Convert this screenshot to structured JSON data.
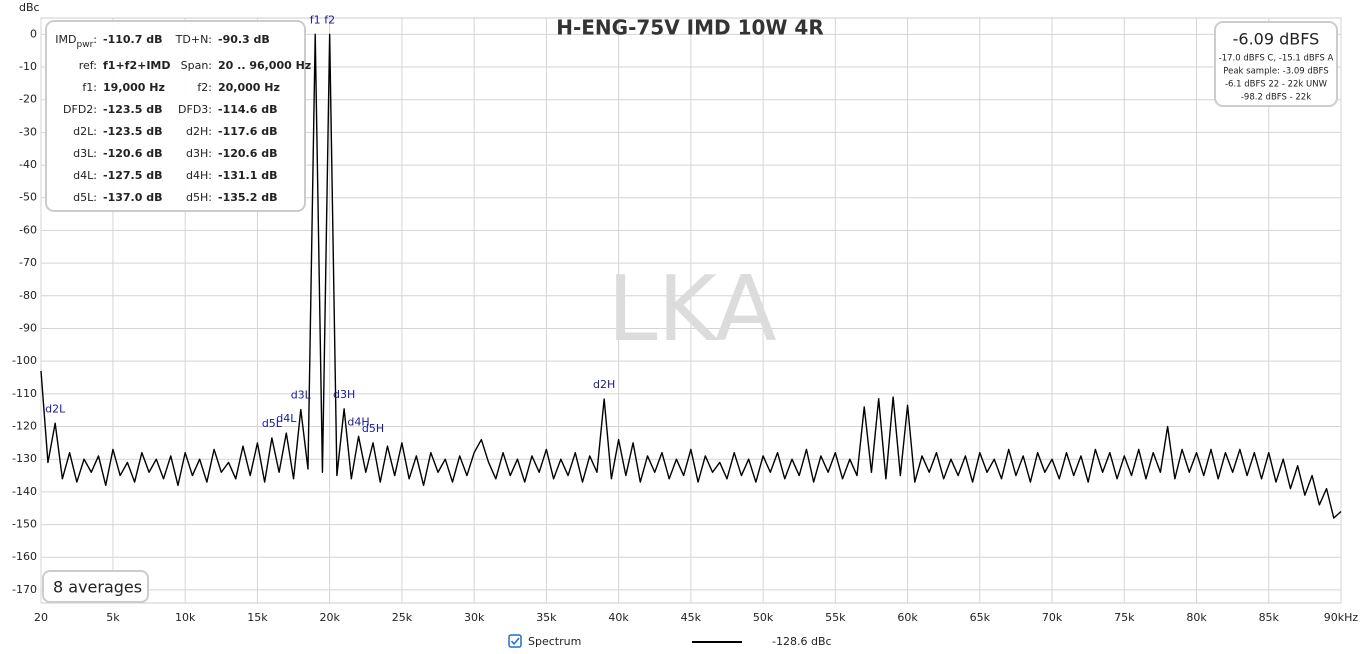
{
  "chart_data": {
    "type": "line",
    "title": "H-ENG-75V IMD 10W 4R",
    "y_label": "dBc",
    "watermark": "LKA",
    "xlim": [
      20,
      90000
    ],
    "ylim": [
      -174,
      5
    ],
    "xticks": [
      20,
      {
        "value": 5000,
        "label": "5k"
      },
      {
        "value": 10000,
        "label": "10k"
      },
      {
        "value": 15000,
        "label": "15k"
      },
      {
        "value": 20000,
        "label": "20k"
      },
      {
        "value": 25000,
        "label": "25k"
      },
      {
        "value": 30000,
        "label": "30k"
      },
      {
        "value": 35000,
        "label": "35k"
      },
      {
        "value": 40000,
        "label": "40k"
      },
      {
        "value": 45000,
        "label": "45k"
      },
      {
        "value": 50000,
        "label": "50k"
      },
      {
        "value": 55000,
        "label": "55k"
      },
      {
        "value": 60000,
        "label": "60k"
      },
      {
        "value": 65000,
        "label": "65k"
      },
      {
        "value": 70000,
        "label": "70k"
      },
      {
        "value": 75000,
        "label": "75k"
      },
      {
        "value": 80000,
        "label": "80k"
      },
      {
        "value": 85000,
        "label": "85k"
      },
      {
        "value": 90000,
        "label": "90kHz"
      }
    ],
    "yticks": [
      0,
      -10,
      -20,
      -30,
      -40,
      -50,
      -60,
      -70,
      -80,
      -90,
      -100,
      -110,
      -120,
      -130,
      -140,
      -150,
      -160,
      -170
    ],
    "grid": true,
    "x": [
      20,
      500,
      1000,
      1500,
      2000,
      2500,
      3000,
      3500,
      4000,
      4500,
      5000,
      5500,
      6000,
      6500,
      7000,
      7500,
      8000,
      8500,
      9000,
      9500,
      10000,
      10500,
      11000,
      11500,
      12000,
      12500,
      13000,
      13500,
      14000,
      14500,
      15000,
      15500,
      16000,
      16500,
      17000,
      17500,
      18000,
      18500,
      19000,
      19500,
      20000,
      20500,
      21000,
      21500,
      22000,
      22500,
      23000,
      23500,
      24000,
      24500,
      25000,
      25500,
      26000,
      26500,
      27000,
      27500,
      28000,
      28500,
      29000,
      29500,
      30000,
      30500,
      31000,
      31500,
      32000,
      32500,
      33000,
      33500,
      34000,
      34500,
      35000,
      35500,
      36000,
      36500,
      37000,
      37500,
      38000,
      38500,
      39000,
      39500,
      40000,
      40500,
      41000,
      41500,
      42000,
      42500,
      43000,
      43500,
      44000,
      44500,
      45000,
      45500,
      46000,
      46500,
      47000,
      47500,
      48000,
      48500,
      49000,
      49500,
      50000,
      50500,
      51000,
      51500,
      52000,
      52500,
      53000,
      53500,
      54000,
      54500,
      55000,
      55500,
      56000,
      56500,
      57000,
      57500,
      58000,
      58500,
      59000,
      59500,
      60000,
      60500,
      61000,
      61500,
      62000,
      62500,
      63000,
      63500,
      64000,
      64500,
      65000,
      65500,
      66000,
      66500,
      67000,
      67500,
      68000,
      68500,
      69000,
      69500,
      70000,
      70500,
      71000,
      71500,
      72000,
      72500,
      73000,
      73500,
      74000,
      74500,
      75000,
      75500,
      76000,
      76500,
      77000,
      77500,
      78000,
      78500,
      79000,
      79500,
      80000,
      80500,
      81000,
      81500,
      82000,
      82500,
      83000,
      83500,
      84000,
      84500,
      85000,
      85500,
      86000,
      86500,
      87000,
      87500,
      88000,
      88500,
      89000,
      89500,
      90000
    ],
    "series": [
      {
        "name": "Spectrum",
        "color": "#000000",
        "values": [
          -103,
          -131,
          -119,
          -136,
          -128,
          -137,
          -130,
          -134,
          -129,
          -138,
          -127,
          -135,
          -131,
          -137,
          -128,
          -134,
          -130,
          -136,
          -129,
          -138,
          -128,
          -135,
          -130,
          -137,
          -127,
          -134,
          -131,
          -136,
          -126,
          -135,
          -125,
          -137,
          -123.5,
          -134,
          -122,
          -136,
          -114.8,
          -133,
          0,
          -134,
          0,
          -135,
          -114.6,
          -136,
          -123,
          -134,
          -125,
          -137,
          -126,
          -135,
          -125,
          -136,
          -129,
          -138,
          -128,
          -134,
          -130,
          -137,
          -129,
          -135,
          -128,
          -124,
          -131,
          -136,
          -128,
          -135,
          -130,
          -137,
          -129,
          -134,
          -127,
          -136,
          -130,
          -135,
          -128,
          -137,
          -129,
          -134,
          -111.6,
          -136,
          -124,
          -135,
          -125,
          -137,
          -129,
          -134,
          -128,
          -136,
          -130,
          -135,
          -127,
          -137,
          -129,
          -134,
          -131,
          -136,
          -128,
          -135,
          -130,
          -137,
          -129,
          -134,
          -128,
          -136,
          -130,
          -135,
          -127,
          -137,
          -129,
          -134,
          -128,
          -136,
          -130,
          -135,
          -114,
          -134,
          -111.5,
          -136,
          -111,
          -135,
          -113.5,
          -137,
          -129,
          -134,
          -128,
          -136,
          -130,
          -135,
          -129,
          -137,
          -128,
          -134,
          -130,
          -136,
          -127,
          -135,
          -129,
          -137,
          -128,
          -134,
          -130,
          -136,
          -128,
          -135,
          -129,
          -137,
          -127,
          -134,
          -128,
          -136,
          -129,
          -135,
          -127,
          -136,
          -128,
          -134,
          -120,
          -136,
          -127,
          -134,
          -128,
          -135,
          -127,
          -136,
          -128,
          -134,
          -127,
          -135,
          -128,
          -136,
          -128,
          -137,
          -130,
          -139,
          -132,
          -141,
          -135,
          -144,
          -139,
          -148,
          -146
        ]
      }
    ],
    "annotations": [
      {
        "text": "f1",
        "x": 19000
      },
      {
        "text": "f2",
        "x": 20000
      },
      {
        "text": "d2L",
        "x": 1000
      },
      {
        "text": "d3L",
        "x": 18000
      },
      {
        "text": "d4L",
        "x": 17000
      },
      {
        "text": "d5L",
        "x": 16000
      },
      {
        "text": "d3H",
        "x": 21000
      },
      {
        "text": "d4H",
        "x": 22000
      },
      {
        "text": "d5H",
        "x": 23000
      },
      {
        "text": "d2H",
        "x": 39000
      }
    ],
    "info_panel": [
      [
        [
          "IMD",
          "pwr",
          ":"
        ],
        "-110.7 dB",
        "TD+N:",
        "-90.3 dB"
      ],
      [
        "ref:",
        "f1+f2+IMD",
        "Span:",
        "20 .. 96,000 Hz"
      ],
      [
        "f1:",
        "19,000 Hz",
        "f2:",
        "20,000 Hz"
      ],
      [
        "DFD2:",
        "-123.5 dB",
        "DFD3:",
        "-114.6 dB"
      ],
      [
        "d2L:",
        "-123.5 dB",
        "d2H:",
        "-117.6 dB"
      ],
      [
        "d3L:",
        "-120.6 dB",
        "d3H:",
        "-120.6 dB"
      ],
      [
        "d4L:",
        "-127.5 dB",
        "d4H:",
        "-131.1 dB"
      ],
      [
        "d5L:",
        "-137.0 dB",
        "d5H:",
        "-135.2 dB"
      ]
    ],
    "level_panel": {
      "main": "-6.09 dBFS",
      "lines": [
        "-17.0 dBFS C, -15.1 dBFS A",
        "Peak sample: -3.09 dBFS",
        "-6.1 dBFS 22 - 22k UNW",
        "-98.2 dBFS - 22k"
      ]
    },
    "averages": "8 averages",
    "legend_value": "-128.6 dBc"
  }
}
